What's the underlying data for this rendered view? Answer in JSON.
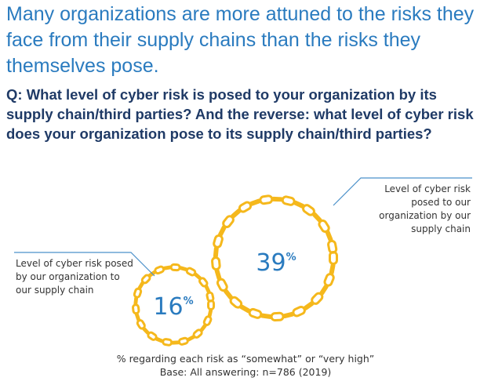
{
  "headline": "Many organizations are more attuned to the risks they face from their supply chains than the risks they themselves pose.",
  "question": "Q: What level of cyber risk is posed to your organization by its supply chain/third parties? And the reverse: what level of cyber risk does your organization pose to its supply chain/third parties?",
  "colors": {
    "headline": "#2a7bbf",
    "question": "#1f3a66",
    "chain": "#f5b81c",
    "value": "#2a7bbf",
    "leader": "#4a90c9"
  },
  "icon": "chain-link-ring",
  "chart_data": {
    "type": "bubble",
    "unit": "%",
    "items": [
      {
        "label": "Level of cyber risk posed to our organization by our supply chain",
        "value": 39,
        "unit": "%"
      },
      {
        "label": "Level of cyber risk posed by our organization to our supply chain",
        "value": 16,
        "unit": "%"
      }
    ]
  },
  "footnote": {
    "line1": "% regarding each risk as “somewhat” or “very high”",
    "line2": "Base: All answering: n=786 (2019)"
  }
}
